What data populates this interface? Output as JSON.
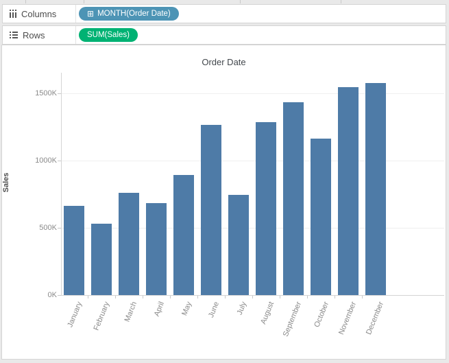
{
  "shelves": {
    "columns": {
      "label": "Columns",
      "pill": {
        "expand_icon": "⊞",
        "text": "MONTH(Order Date)",
        "color": "#4d94b5"
      }
    },
    "rows": {
      "label": "Rows",
      "pill": {
        "text": "SUM(Sales)",
        "color": "#00b273"
      }
    }
  },
  "chart_data": {
    "type": "bar",
    "title": "Order Date",
    "xlabel": "",
    "ylabel": "Sales",
    "categories": [
      "January",
      "February",
      "March",
      "April",
      "May",
      "June",
      "July",
      "August",
      "September",
      "October",
      "November",
      "December"
    ],
    "values_thousands": [
      665,
      530,
      760,
      685,
      895,
      1265,
      745,
      1285,
      1435,
      1165,
      1545,
      1575
    ],
    "y_ticks": [
      {
        "label": "0K",
        "value": 0
      },
      {
        "label": "500K",
        "value": 500
      },
      {
        "label": "1000K",
        "value": 1000
      },
      {
        "label": "1500K",
        "value": 1500
      }
    ],
    "ylim": [
      0,
      1680
    ],
    "grid": "horizontal",
    "legend": "none",
    "bar_color": "#4e7ba7"
  }
}
